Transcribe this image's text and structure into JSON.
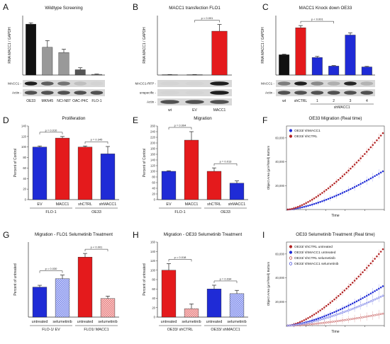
{
  "panels": [
    {
      "id": "A",
      "letter": "A",
      "type": "bar",
      "title": "Wildtype Screening",
      "ylabel": "RNA MACC1 / GAPDH",
      "ylim": [
        0,
        0.9
      ],
      "categories": [
        "OE33",
        "MKN45",
        "NCI-N87",
        "OAC-P4C",
        "FLO-1"
      ],
      "values": [
        0.77,
        0.42,
        0.34,
        0.08,
        0.01
      ],
      "errors": [
        0.02,
        0.1,
        0.05,
        0.03,
        0.005
      ],
      "colors": [
        "#111111",
        "#999999",
        "#999999",
        "#555555",
        "#888888"
      ],
      "blot_labels": [
        "MACC1 -",
        "Actin -"
      ]
    },
    {
      "id": "B",
      "letter": "B",
      "type": "bar",
      "title": "MACC1 transfection FLO1",
      "ylabel": "RNA MACC1 / GAPDH",
      "ylim": [
        0,
        8
      ],
      "categories": [
        "wt",
        "EV",
        "MACC1"
      ],
      "values": [
        0.05,
        0.05,
        5.9
      ],
      "errors": [
        0.02,
        0.02,
        0.9
      ],
      "colors": [
        "#888888",
        "#888888",
        "#e41a1c"
      ],
      "significance": [
        {
          "label": "p < 0.001",
          "from": 1,
          "to": 2
        }
      ],
      "blot_labels": [
        "MACC1-RFP -",
        "unspecific -",
        "Actin -"
      ]
    },
    {
      "id": "C",
      "letter": "C",
      "type": "bar",
      "title": "MACC1 Knock down OE33",
      "ylabel": "RNA MACC1 / GAPDH",
      "ylim": [
        0,
        2.2
      ],
      "categories": [
        "wt",
        "shCTRL",
        "1",
        "2",
        "3",
        "4"
      ],
      "group_label": "shMACC1",
      "values": [
        0.75,
        1.75,
        0.65,
        0.33,
        1.48,
        0.3
      ],
      "errors": [
        0.02,
        0.08,
        0.04,
        0.02,
        0.08,
        0.02
      ],
      "colors": [
        "#111111",
        "#e41a1c",
        "#1f2bd6",
        "#1f2bd6",
        "#1f2bd6",
        "#1f2bd6"
      ],
      "significance": [
        {
          "label": "p < 0.001",
          "from": 1,
          "to": 3
        }
      ],
      "blot_labels": [
        "MACC1 -",
        "Actin -"
      ]
    },
    {
      "id": "D",
      "letter": "D",
      "type": "bar",
      "title": "Proliferation",
      "ylabel": "Percent of Control",
      "ylim": [
        0,
        140
      ],
      "yticks": [
        0,
        20,
        40,
        60,
        80,
        100,
        120,
        140
      ],
      "categories": [
        "EV",
        "MACC1",
        "shCTRL",
        "shMACC1"
      ],
      "values": [
        100,
        117,
        100,
        87
      ],
      "errors": [
        2,
        3,
        2,
        14
      ],
      "colors": [
        "#1f2bd6",
        "#e41a1c",
        "#e41a1c",
        "#1f2bd6"
      ],
      "groups": [
        {
          "label": "FLO-1",
          "from": 0,
          "to": 1
        },
        {
          "label": "OE33",
          "from": 2,
          "to": 3
        }
      ],
      "significance": [
        {
          "label": "p = 0.010",
          "from": 0,
          "to": 1
        },
        {
          "label": "p = 0.345",
          "from": 2,
          "to": 3
        }
      ]
    },
    {
      "id": "E",
      "letter": "E",
      "type": "bar",
      "title": "Migration",
      "ylabel": "Percent of Control",
      "ylim": [
        0,
        260
      ],
      "yticks": [
        0,
        20,
        40,
        60,
        80,
        100,
        120,
        140,
        160,
        180,
        200,
        220,
        240,
        260
      ],
      "categories": [
        "EV",
        "MACC1",
        "shCTRL",
        "shMACC1"
      ],
      "values": [
        100,
        210,
        100,
        58
      ],
      "errors": [
        2,
        30,
        12,
        8
      ],
      "colors": [
        "#1f2bd6",
        "#e41a1c",
        "#e41a1c",
        "#1f2bd6"
      ],
      "groups": [
        {
          "label": "FLO-1",
          "from": 0,
          "to": 1
        },
        {
          "label": "OE33",
          "from": 2,
          "to": 3
        }
      ],
      "significance": [
        {
          "label": "p = 0.004",
          "from": 0,
          "to": 1
        },
        {
          "label": "p = 0.013",
          "from": 2,
          "to": 3
        }
      ]
    },
    {
      "id": "F",
      "letter": "F",
      "type": "scatter",
      "title": "OE33 Migration (Real time)",
      "xlabel": "Time",
      "ylabel": "Object Area (µm²/Well) Bottom",
      "ylim": [
        0,
        70000
      ],
      "yticks": [
        20000,
        40000,
        60000
      ],
      "ytick_labels": [
        "20,000",
        "40,000",
        "60,000"
      ],
      "series": [
        {
          "name": "OE33/ shMACC1",
          "color": "#1f2bd6",
          "fill": "#1f2bd6",
          "start": 0,
          "end": 32000
        },
        {
          "name": "OE33/ shCTRL",
          "color": "#b22222",
          "fill": "#b22222",
          "start": 0,
          "end": 64000
        }
      ]
    },
    {
      "id": "G",
      "letter": "G",
      "type": "bar",
      "title": "Migration - FLO1 Selumetinib Treatment",
      "ylabel": "Percent of untreated",
      "ylim": [
        0,
        250
      ],
      "categories": [
        "untreated",
        "selumetinib",
        "untreated",
        "selumetinib"
      ],
      "values": [
        100,
        128,
        200,
        62
      ],
      "errors": [
        6,
        12,
        12,
        8
      ],
      "colors": [
        "#1f2bd6",
        "#9da9f0",
        "#e41a1c",
        "#f4a1a1"
      ],
      "hatched": [
        false,
        true,
        false,
        true
      ],
      "groups": [
        {
          "label": "FLO-1/ EV",
          "from": 0,
          "to": 1
        },
        {
          "label": "FLO1/ MACC1",
          "from": 2,
          "to": 3
        }
      ],
      "significance": [
        {
          "label": "p = 0.030",
          "from": 0,
          "to": 1
        },
        {
          "label": "p < 0.001",
          "from": 2,
          "to": 3
        }
      ]
    },
    {
      "id": "H",
      "letter": "H",
      "type": "bar",
      "title": "Migration - OE33 Selumetinib Treatment",
      "ylabel": "Percent of untreated",
      "ylim": [
        0,
        160
      ],
      "yticks": [
        0,
        20,
        40,
        60,
        80,
        100,
        120,
        140,
        160
      ],
      "categories": [
        "untreated",
        "selumetinib",
        "untreated",
        "selumetinib"
      ],
      "values": [
        100,
        18,
        60,
        50
      ],
      "errors": [
        14,
        10,
        8,
        7
      ],
      "colors": [
        "#e41a1c",
        "#f4a1a1",
        "#1f2bd6",
        "#9da9f0"
      ],
      "hatched": [
        false,
        true,
        false,
        true
      ],
      "groups": [
        {
          "label": "OE33/ shCTRL",
          "from": 0,
          "to": 1
        },
        {
          "label": "OE33/ shMACC1",
          "from": 2,
          "to": 3
        }
      ],
      "significance": [
        {
          "label": "p = 0.018",
          "from": 0,
          "to": 1
        },
        {
          "label": "p = 0.034",
          "from": 2,
          "to": 3
        }
      ]
    },
    {
      "id": "I",
      "letter": "I",
      "type": "scatter",
      "title": "OE33 Selumetinib Treatment (Real time)",
      "xlabel": "Time",
      "ylabel": "Object Area (µm²/Well) Bottom",
      "ylim": [
        0,
        70000
      ],
      "yticks": [
        20000,
        40000,
        60000
      ],
      "ytick_labels": [
        "20,000",
        "40,000",
        "60,000"
      ],
      "series": [
        {
          "name": "OE33/ shCTRL untreated",
          "color": "#b22222",
          "fill": "#b22222",
          "start": 0,
          "end": 64000
        },
        {
          "name": "OE33/ shMACC1 untreated",
          "color": "#1f2bd6",
          "fill": "#1f2bd6",
          "start": 0,
          "end": 33000
        },
        {
          "name": "OE33/ shCTRL selumetinib",
          "color": "#b22222",
          "fill": "#ffffff",
          "start": 0,
          "end": 10000
        },
        {
          "name": "OE33/ shMACC1 selumetinib",
          "color": "#1f2bd6",
          "fill": "#ffffff",
          "start": 0,
          "end": 25000
        }
      ]
    }
  ]
}
